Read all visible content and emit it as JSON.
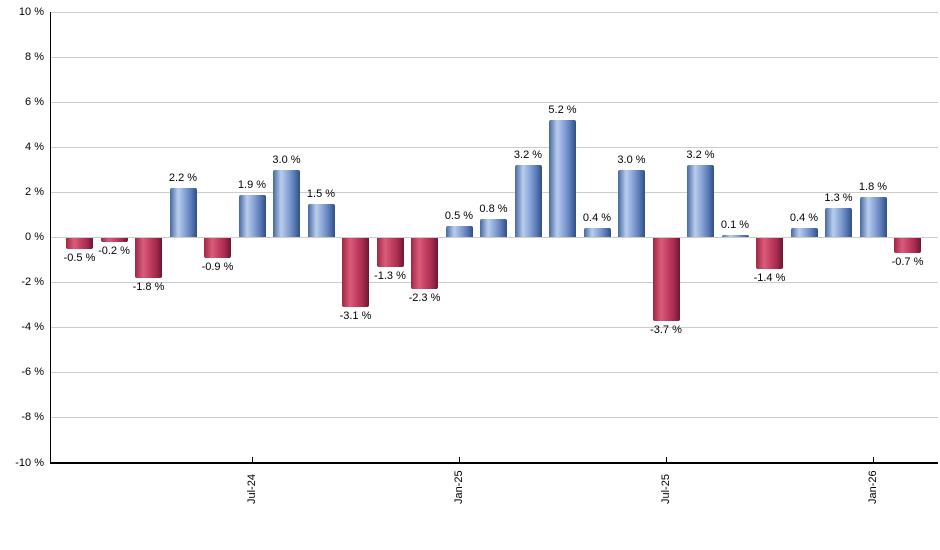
{
  "chart_data": {
    "type": "bar",
    "title": "",
    "description": "Monthly returns bar chart, positive months blue, negative months red",
    "grid": true,
    "legend_position": "none",
    "y_axis": {
      "min": -10,
      "max": 10,
      "step": 2,
      "unit": "%",
      "tick_labels": [
        "10 %",
        "8 %",
        "6 %",
        "4 %",
        "2 %",
        "0 %",
        "-2 %",
        "-4 %",
        "-6 %",
        "-8 %",
        "-10 %"
      ]
    },
    "x_axis": {
      "tick_labels": [
        {
          "bar_index": 5,
          "label": "Jul-24"
        },
        {
          "bar_index": 11,
          "label": "Jan-25"
        },
        {
          "bar_index": 17,
          "label": "Jul-25"
        },
        {
          "bar_index": 23,
          "label": "Jan-26"
        }
      ]
    },
    "series": [
      {
        "name": "monthly-return-pct",
        "values": [
          -0.5,
          -0.2,
          -1.8,
          2.2,
          -0.9,
          1.9,
          3.0,
          1.5,
          -3.1,
          -1.3,
          -2.3,
          0.5,
          0.8,
          3.2,
          5.2,
          0.4,
          3.0,
          -3.7,
          3.2,
          0.1,
          -1.4,
          0.4,
          1.3,
          1.8,
          -0.7
        ]
      }
    ],
    "value_labels": [
      "-0.5 %",
      "-0.2 %",
      "-1.8 %",
      "2.2 %",
      "-0.9 %",
      "1.9 %",
      "3.0 %",
      "1.5 %",
      "-3.1 %",
      "-1.3 %",
      "-2.3 %",
      "0.5 %",
      "0.8 %",
      "3.2 %",
      "5.2 %",
      "0.4 %",
      "3.0 %",
      "-3.7 %",
      "3.2 %",
      "0.1 %",
      "-1.4 %",
      "0.4 %",
      "1.3 %",
      "1.8 %",
      "-0.7 %"
    ],
    "colors": {
      "positive_gradient": [
        "#46679f",
        "#b9ceee",
        "#8aa5d6",
        "#5c7cb8",
        "#2f4e86"
      ],
      "negative_gradient": [
        "#9e2744",
        "#da5c7b",
        "#c23f60",
        "#a62b4d",
        "#6e1535"
      ],
      "grid": "#cccccc",
      "axis": "#000000",
      "text": "#000000",
      "background": "#ffffff"
    }
  }
}
